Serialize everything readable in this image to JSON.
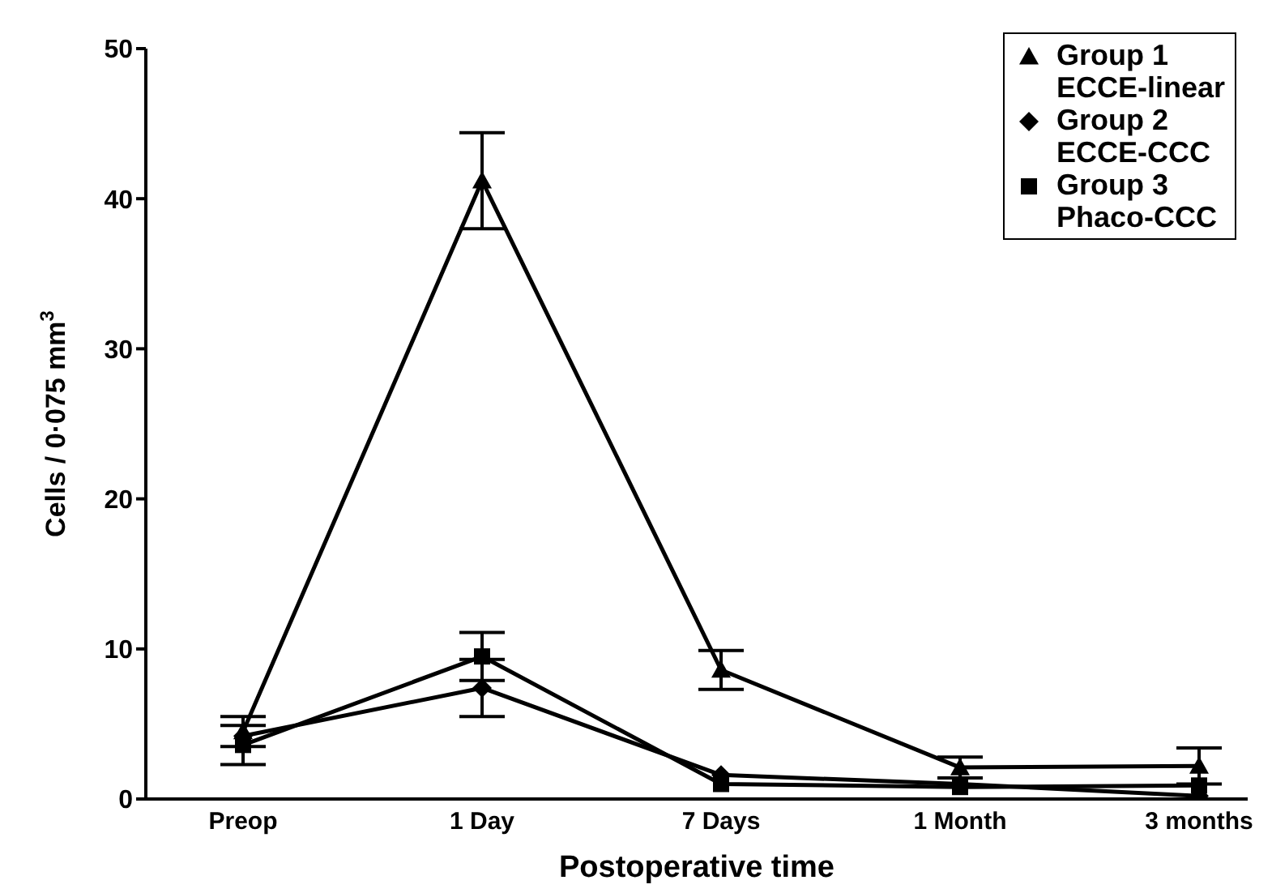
{
  "chart_data": {
    "type": "line",
    "xlabel": "Postoperative time",
    "ylabel": "Cells / 0·075 mm$^{3}$",
    "categories": [
      "Preop",
      "1 Day",
      "7 Days",
      "1 Month",
      "3 months"
    ],
    "ylim": [
      0,
      50
    ],
    "yticks": [
      0,
      10,
      20,
      30,
      40,
      50
    ],
    "grid": false,
    "legend": "top right",
    "line_style": "solid",
    "series": [
      {
        "name": "Group 1\nECCE-linear",
        "color": "#000000",
        "marker": "triangle",
        "values": [
          4.5,
          41.2,
          8.6,
          2.1,
          2.2
        ],
        "errors": [
          1.0,
          3.2,
          1.3,
          0.7,
          1.2
        ]
      },
      {
        "name": "Group 2\nECCE-CCC",
        "color": "#000000",
        "marker": "diamond",
        "values": [
          4.2,
          7.4,
          1.6,
          1.0,
          0.2
        ],
        "errors": [
          null,
          1.9,
          null,
          null,
          null
        ]
      },
      {
        "name": "Group 3\nPhaco-CCC",
        "color": "#000000",
        "marker": "square",
        "values": [
          3.6,
          9.5,
          1.0,
          0.8,
          0.9
        ],
        "errors": [
          1.3,
          1.6,
          null,
          null,
          null
        ]
      }
    ]
  }
}
